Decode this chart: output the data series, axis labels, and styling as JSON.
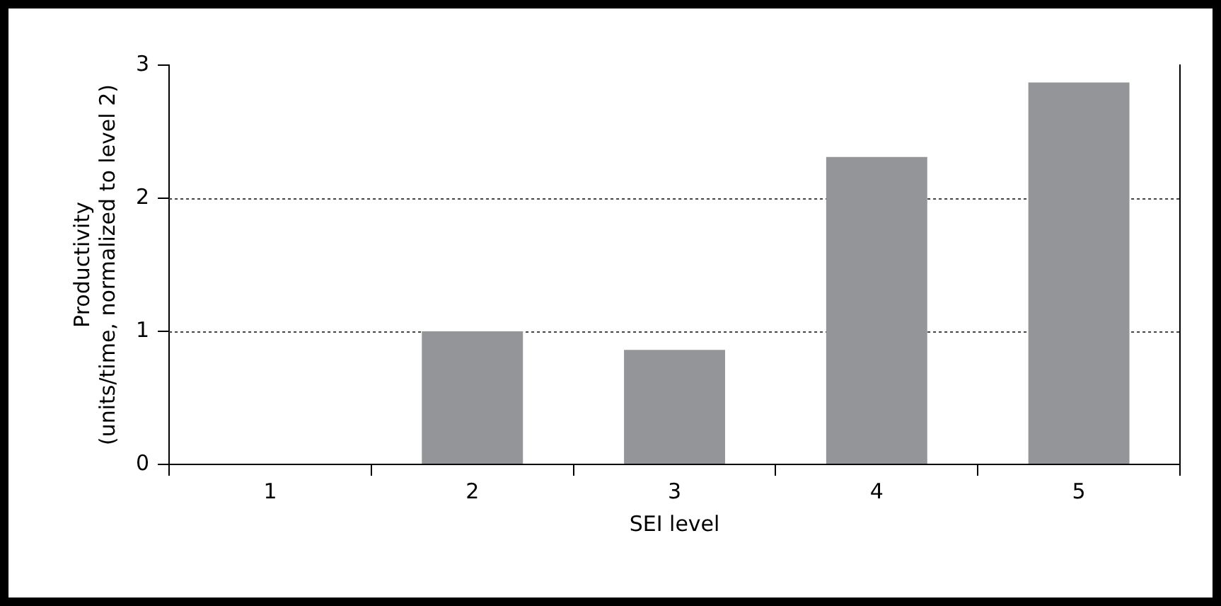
{
  "chart_data": {
    "type": "bar",
    "xlabel": "SEI level",
    "ylabel": "Productivity\n(units/time, normalized to level 2)",
    "categories": [
      "1",
      "2",
      "3",
      "4",
      "5"
    ],
    "values": [
      0,
      1.0,
      0.86,
      2.31,
      2.87
    ],
    "color": "#939598",
    "ylim": [
      0,
      3
    ],
    "yticks": [
      0,
      1,
      2,
      3
    ],
    "grid": "y"
  }
}
